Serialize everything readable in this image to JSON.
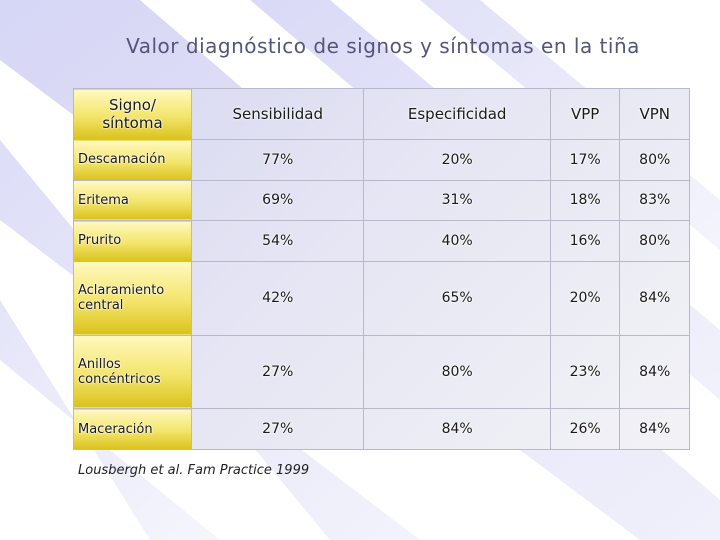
{
  "title": "Valor diagnóstico de signos y síntomas en la tiña",
  "table": {
    "header": [
      "Signo/ síntoma",
      "Sensibilidad",
      "Especificidad",
      "VPP",
      "VPN"
    ],
    "rows": [
      [
        "Descamación",
        "77%",
        "20%",
        "17%",
        "80%"
      ],
      [
        "Eritema",
        "69%",
        "31%",
        "18%",
        "83%"
      ],
      [
        "Prurito",
        "54%",
        "40%",
        "16%",
        "80%"
      ],
      [
        "Aclaramiento central",
        "42%",
        "65%",
        "20%",
        "84%"
      ],
      [
        "Anillos concéntricos",
        "27%",
        "80%",
        "23%",
        "84%"
      ],
      [
        "Maceración",
        "27%",
        "84%",
        "26%",
        "84%"
      ]
    ]
  },
  "footnote": "Lousbergh et al. Fam Practice 1999"
}
